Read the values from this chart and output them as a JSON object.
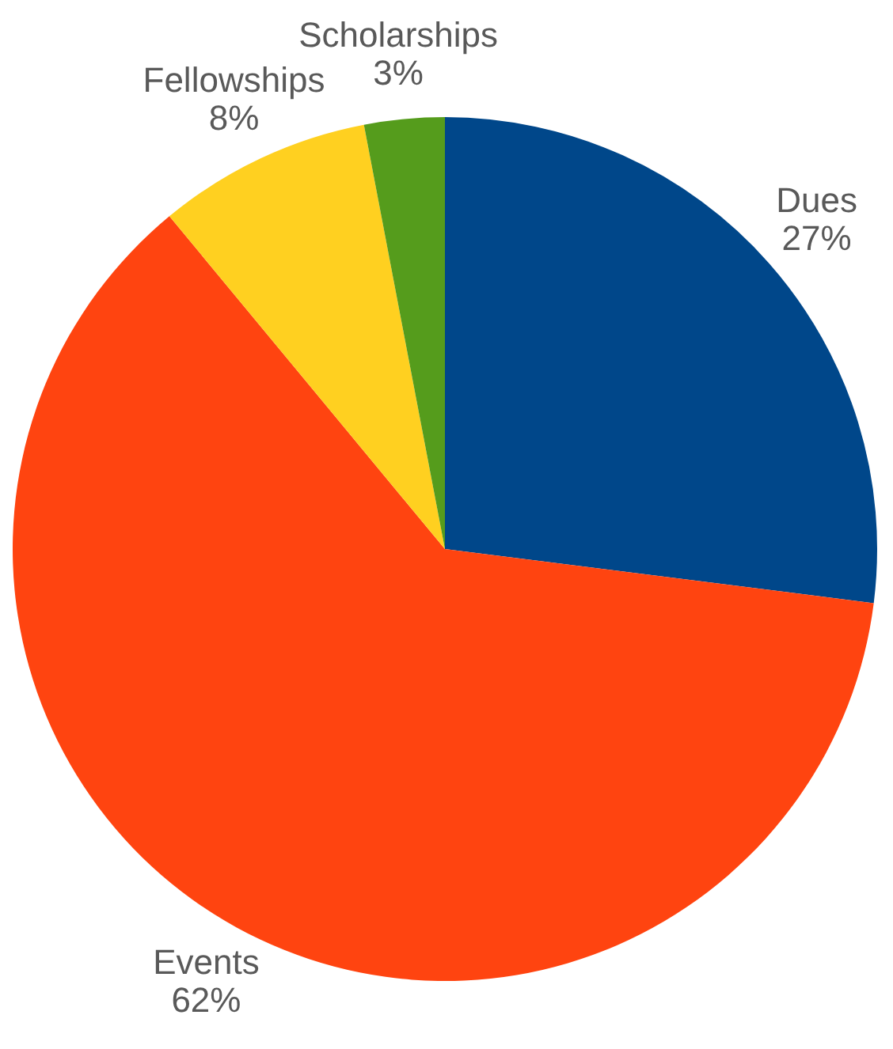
{
  "chart_data": {
    "type": "pie",
    "categories": [
      "Dues",
      "Events",
      "Fellowships",
      "Scholarships"
    ],
    "values": [
      27,
      62,
      8,
      3
    ],
    "colors": [
      "#00478a",
      "#ff4410",
      "#ffd020",
      "#559c1c"
    ],
    "value_labels": [
      "27%",
      "62%",
      "8%",
      "3%"
    ],
    "legend": false
  }
}
